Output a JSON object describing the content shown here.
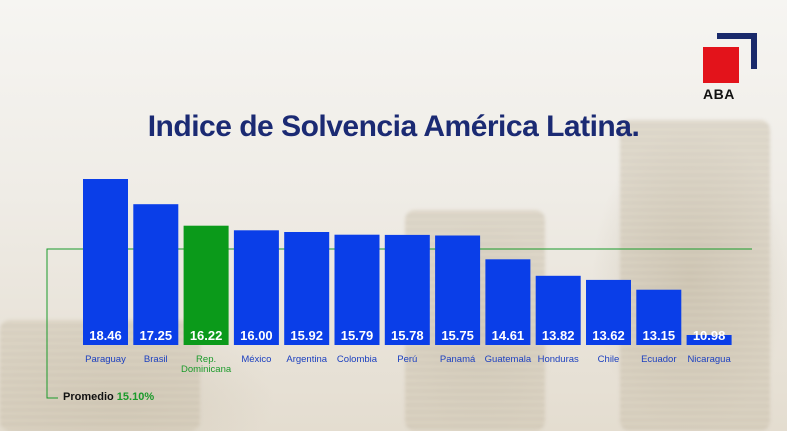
{
  "logo": {
    "text": "ABA"
  },
  "chart_data": {
    "type": "bar",
    "title": "Indice de Solvencia América Latina.",
    "categories": [
      "Paraguay",
      "Brasil",
      "Rep. Dominicana",
      "México",
      "Argentina",
      "Colombia",
      "Perú",
      "Panamá",
      "Guatemala",
      "Honduras",
      "Chile",
      "Ecuador",
      "Nicaragua"
    ],
    "values": [
      18.46,
      17.25,
      16.22,
      16.0,
      15.92,
      15.79,
      15.78,
      15.75,
      14.61,
      13.82,
      13.62,
      13.15,
      10.98
    ],
    "value_labels": [
      "18.46",
      "17.25",
      "16.22",
      "16.00",
      "15.92",
      "15.79",
      "15.78",
      "15.75",
      "14.61",
      "13.82",
      "13.62",
      "13.15",
      "10.98"
    ],
    "highlight_index": 2,
    "colors": {
      "bar": "#0a3ee8",
      "highlight": "#0b9a1a",
      "label_highlight": "#1a9a2a",
      "label": "#1b3fbf",
      "average_line": "#1a9a2a"
    },
    "average": {
      "label": "Promedio",
      "value_text": "15.10%",
      "value": 15.1
    },
    "ylim": [
      10.5,
      19.0
    ]
  }
}
